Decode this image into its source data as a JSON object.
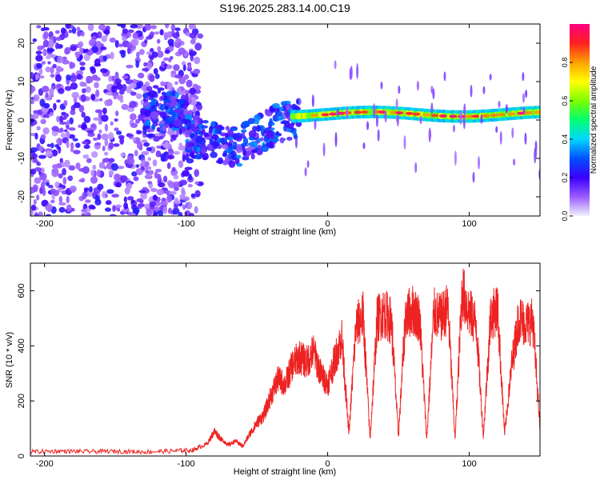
{
  "title": "S196.2025.283.14.00.C19",
  "chart_data": [
    {
      "type": "heatmap",
      "name": "spectrogram",
      "xlabel": "Height of straight line (km)",
      "ylabel": "Frequency (Hz)",
      "xlim": [
        -210,
        150
      ],
      "ylim": [
        -25,
        25
      ],
      "x_ticks": [
        -200,
        -100,
        0,
        100
      ],
      "y_ticks": [
        -20,
        -10,
        0,
        10,
        20
      ],
      "colorbar": {
        "label": "Normalized spectral amplitude",
        "range": [
          0,
          1
        ],
        "ticks": [
          0.0,
          0.2,
          0.4,
          0.6,
          0.8
        ],
        "tick_labels": [
          "0.0",
          "0.2",
          "0.4",
          "0.6",
          "0.8"
        ],
        "colors": [
          "#f2f2ff",
          "#9a5cff",
          "#3b00ff",
          "#0050ff",
          "#00d8ff",
          "#00ff70",
          "#7cff00",
          "#ffff00",
          "#ffa000",
          "#ff2020",
          "#ff0080"
        ]
      },
      "features": [
        {
          "label": "noise",
          "x_range": [
            -210,
            -90
          ],
          "freq_range": [
            -25,
            25
          ],
          "amplitude": 0.1
        },
        {
          "label": "drift",
          "x_range": [
            -130,
            -20
          ],
          "freq_range": [
            -15,
            6
          ],
          "amplitude": 0.25
        },
        {
          "label": "carrier",
          "x_range": [
            -25,
            150
          ],
          "freq_center": 1.5,
          "amplitude": 0.8
        }
      ]
    },
    {
      "type": "line",
      "name": "snr",
      "xlabel": "Height of straight line (km)",
      "ylabel": "SNR (10 * v/v)",
      "xlim": [
        -210,
        150
      ],
      "ylim": [
        0,
        700
      ],
      "x_ticks": [
        -200,
        -100,
        0,
        100
      ],
      "y_ticks": [
        0,
        200,
        400,
        600
      ],
      "series": [
        {
          "name": "SNR",
          "color": "#ee2222",
          "x": [
            -210,
            -190,
            -170,
            -150,
            -130,
            -110,
            -95,
            -85,
            -80,
            -75,
            -70,
            -65,
            -60,
            -55,
            -50,
            -45,
            -40,
            -35,
            -30,
            -25,
            -20,
            -15,
            -10,
            -5,
            0,
            5,
            10,
            15,
            20,
            25,
            30,
            35,
            40,
            45,
            50,
            55,
            60,
            65,
            70,
            75,
            80,
            85,
            90,
            95,
            100,
            105,
            110,
            115,
            120,
            125,
            130,
            135,
            140,
            145,
            150
          ],
          "values": [
            15,
            18,
            16,
            17,
            15,
            18,
            22,
            45,
            90,
            60,
            40,
            55,
            35,
            80,
            120,
            150,
            220,
            280,
            260,
            330,
            360,
            340,
            380,
            300,
            260,
            350,
            430,
            80,
            470,
            510,
            60,
            500,
            520,
            490,
            70,
            510,
            530,
            500,
            60,
            520,
            500,
            540,
            60,
            600,
            520,
            480,
            70,
            500,
            540,
            80,
            330,
            500,
            480,
            490,
            100
          ]
        }
      ]
    }
  ]
}
